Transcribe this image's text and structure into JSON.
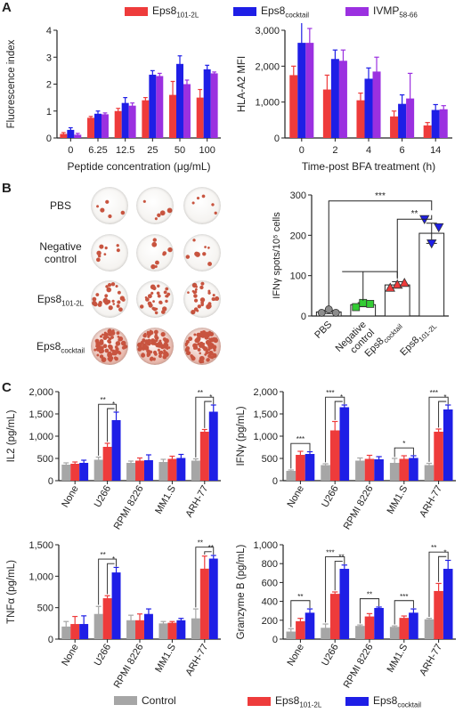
{
  "panels": {
    "a": "A",
    "b": "B",
    "c": "C"
  },
  "colors": {
    "eps8_101": "#ee3b3b",
    "eps8_cocktail": "#1e1ee6",
    "ivmp": "#9b30e0",
    "control": "#a6a6a6",
    "pbs_marker": "#8c8c8c",
    "neg_marker": "#33cc33",
    "cocktail_marker": "#ee3b3b",
    "eps101_marker": "#1e1ee6",
    "well_bg": "#f4f2ef",
    "well_spot": "#c8543f"
  },
  "legend_a": [
    {
      "base": "Eps8",
      "sub": "101-2L",
      "color_key": "eps8_101"
    },
    {
      "base": "Eps8",
      "sub": "cocktail",
      "color_key": "eps8_cocktail"
    },
    {
      "base": "IVMP",
      "sub": "58-66",
      "color_key": "ivmp"
    }
  ],
  "legend_c": [
    {
      "base": "Control",
      "sub": "",
      "color_key": "control"
    },
    {
      "base": "Eps8",
      "sub": "101-2L",
      "color_key": "eps8_101"
    },
    {
      "base": "Eps8",
      "sub": "cocktail",
      "color_key": "eps8_cocktail"
    }
  ],
  "wells": {
    "rows": [
      {
        "label_lines": [
          "PBS"
        ],
        "density": 0.04
      },
      {
        "label_lines": [
          "Negative",
          "control"
        ],
        "density": 0.08
      },
      {
        "label_lines": [
          "Eps8_101-2L"
        ],
        "density": 0.35
      },
      {
        "label_lines": [
          "Eps8_cocktail"
        ],
        "density": 1.0
      }
    ]
  },
  "chart_data": [
    {
      "id": "A1",
      "type": "bar",
      "xlabel": "Peptide concentration (μg/mL)",
      "ylabel": "Fluorescence index",
      "categories": [
        "0",
        "6.25",
        "12.5",
        "25",
        "50",
        "100"
      ],
      "ylim": [
        0,
        4
      ],
      "yticks": [
        0,
        1,
        2,
        3,
        4
      ],
      "series": [
        {
          "color_key": "eps8_101",
          "values": [
            0.15,
            0.75,
            1.0,
            1.4,
            1.6,
            1.5
          ],
          "errors": [
            0.05,
            0.05,
            0.1,
            0.1,
            0.5,
            0.3
          ]
        },
        {
          "color_key": "eps8_cocktail",
          "values": [
            0.3,
            0.9,
            1.3,
            2.35,
            2.75,
            2.55
          ],
          "errors": [
            0.08,
            0.1,
            0.2,
            0.15,
            0.3,
            0.15
          ]
        },
        {
          "color_key": "ivmp",
          "values": [
            0.12,
            0.88,
            1.2,
            2.3,
            2.0,
            2.4
          ],
          "errors": [
            0.05,
            0.05,
            0.1,
            0.1,
            0.15,
            0.05
          ]
        }
      ]
    },
    {
      "id": "A2",
      "type": "bar",
      "xlabel": "Time-post BFA treatment (h)",
      "ylabel": "HLA-A2 MFI",
      "categories": [
        "0",
        "2",
        "4",
        "6",
        "14"
      ],
      "ylim": [
        0,
        3000
      ],
      "yticks": [
        0,
        1000,
        2000,
        3000
      ],
      "ytick_labels": [
        "0",
        "1,000",
        "2,000",
        "3,000"
      ],
      "series": [
        {
          "color_key": "eps8_101",
          "values": [
            1750,
            1350,
            1050,
            600,
            350
          ],
          "errors": [
            250,
            400,
            200,
            150,
            80
          ]
        },
        {
          "color_key": "eps8_cocktail",
          "values": [
            2650,
            2200,
            1650,
            950,
            780
          ],
          "errors": [
            700,
            250,
            300,
            250,
            150
          ]
        },
        {
          "color_key": "ivmp",
          "values": [
            2650,
            2150,
            1850,
            1100,
            800
          ],
          "errors": [
            400,
            300,
            400,
            700,
            100
          ]
        }
      ]
    },
    {
      "id": "B",
      "type": "scatter",
      "ylabel": "IFNγ spots/10⁵ cells",
      "categories": [
        "PBS",
        "Negative control",
        "Eps8_cocktail",
        "Eps8_101-2L"
      ],
      "ylim": [
        0,
        300
      ],
      "yticks": [
        0,
        100,
        200,
        300
      ],
      "means": [
        10,
        28,
        77,
        205
      ],
      "errors": [
        4,
        5,
        8,
        25
      ],
      "points": [
        [
          8,
          12,
          8
        ],
        [
          22,
          28,
          30
        ],
        [
          70,
          78,
          82
        ],
        [
          240,
          180,
          220
        ]
      ],
      "markers": [
        "circle",
        "square",
        "triangle-up",
        "triangle-down"
      ],
      "marker_color_keys": [
        "pbs_marker",
        "neg_marker",
        "cocktail_marker",
        "eps101_marker"
      ],
      "significance": [
        "***",
        "**"
      ]
    },
    {
      "id": "C1",
      "type": "bar",
      "ylabel": "IL2 (pg/mL)",
      "categories": [
        "None",
        "U266",
        "RPMI 8226",
        "MM1.S",
        "ARH-77"
      ],
      "ylim": [
        0,
        2000
      ],
      "yticks": [
        0,
        500,
        1000,
        1500,
        2000
      ],
      "ytick_labels": [
        "0",
        "500",
        "1,000",
        "1,500",
        "2,000"
      ],
      "series": [
        {
          "name": "Control",
          "color_key": "control",
          "values": [
            360,
            470,
            400,
            420,
            450
          ],
          "errors": [
            40,
            60,
            40,
            60,
            40
          ]
        },
        {
          "name": "Eps8_101-2L",
          "color_key": "eps8_101",
          "values": [
            380,
            760,
            450,
            490,
            1100
          ],
          "errors": [
            40,
            80,
            60,
            60,
            50
          ]
        },
        {
          "name": "Eps8_cocktail",
          "color_key": "eps8_cocktail",
          "values": [
            400,
            1360,
            460,
            510,
            1550
          ],
          "errors": [
            60,
            180,
            120,
            80,
            150
          ]
        }
      ],
      "significance": [
        {
          "cat": 1,
          "stars": [
            "**",
            "*"
          ]
        },
        {
          "cat": 4,
          "stars": [
            "**",
            "*"
          ]
        }
      ]
    },
    {
      "id": "C2",
      "type": "bar",
      "ylabel": "IFNγ (pg/mL)",
      "categories": [
        "None",
        "U266",
        "RPMI 8226",
        "MM1.S",
        "ARH-77"
      ],
      "ylim": [
        0,
        2000
      ],
      "yticks": [
        0,
        500,
        1000,
        1500,
        2000
      ],
      "ytick_labels": [
        "0",
        "500",
        "1,000",
        "1,500",
        "2,000"
      ],
      "series": [
        {
          "name": "Control",
          "color_key": "control",
          "values": [
            220,
            350,
            450,
            400,
            350
          ],
          "errors": [
            20,
            30,
            60,
            100,
            40
          ]
        },
        {
          "name": "Eps8_101-2L",
          "color_key": "eps8_101",
          "values": [
            580,
            1130,
            490,
            490,
            1100
          ],
          "errors": [
            80,
            200,
            80,
            70,
            60
          ]
        },
        {
          "name": "Eps8_cocktail",
          "color_key": "eps8_cocktail",
          "values": [
            600,
            1650,
            480,
            510,
            1600
          ],
          "errors": [
            50,
            50,
            60,
            50,
            100
          ]
        }
      ],
      "significance": [
        {
          "cat": 0,
          "stars": [
            "***"
          ]
        },
        {
          "cat": 1,
          "stars": [
            "***",
            "*"
          ]
        },
        {
          "cat": 3,
          "stars": [
            "*"
          ]
        },
        {
          "cat": 4,
          "stars": [
            "***",
            "*"
          ]
        }
      ]
    },
    {
      "id": "C3",
      "type": "bar",
      "ylabel": "TNFα (pg/mL)",
      "categories": [
        "None",
        "U266",
        "RPMI 8226",
        "MM1.S",
        "ARH-77"
      ],
      "ylim": [
        0,
        1500
      ],
      "yticks": [
        0,
        500,
        1000,
        1500
      ],
      "ytick_labels": [
        "0",
        "500",
        "1,000",
        "1,500"
      ],
      "series": [
        {
          "name": "Control",
          "color_key": "control",
          "values": [
            200,
            400,
            300,
            250,
            330
          ],
          "errors": [
            80,
            120,
            80,
            30,
            150
          ]
        },
        {
          "name": "Eps8_101-2L",
          "color_key": "eps8_101",
          "values": [
            240,
            650,
            300,
            260,
            1120
          ],
          "errors": [
            120,
            40,
            100,
            20,
            200
          ]
        },
        {
          "name": "Eps8_cocktail",
          "color_key": "eps8_cocktail",
          "values": [
            240,
            1060,
            400,
            300,
            1280
          ],
          "errors": [
            130,
            80,
            80,
            30,
            50
          ]
        }
      ],
      "significance": [
        {
          "cat": 1,
          "stars": [
            "**",
            "*"
          ]
        },
        {
          "cat": 4,
          "stars": [
            "**",
            "**"
          ]
        }
      ]
    },
    {
      "id": "C4",
      "type": "bar",
      "ylabel": "Granzyme B (pg/mL)",
      "categories": [
        "None",
        "U266",
        "RPMI 8226",
        "MM1.S",
        "ARH-77"
      ],
      "ylim": [
        0,
        1000
      ],
      "yticks": [
        0,
        200,
        400,
        600,
        800,
        1000
      ],
      "ytick_labels": [
        "0",
        "200",
        "400",
        "600",
        "800",
        "1,000"
      ],
      "series": [
        {
          "name": "Control",
          "color_key": "control",
          "values": [
            80,
            120,
            140,
            130,
            210
          ],
          "errors": [
            30,
            40,
            10,
            10,
            10
          ]
        },
        {
          "name": "Eps8_101-2L",
          "color_key": "eps8_101",
          "values": [
            190,
            480,
            240,
            225,
            510
          ],
          "errors": [
            30,
            20,
            30,
            20,
            80
          ]
        },
        {
          "name": "Eps8_cocktail",
          "color_key": "eps8_cocktail",
          "values": [
            280,
            745,
            330,
            280,
            745
          ],
          "errors": [
            40,
            40,
            10,
            40,
            90
          ]
        }
      ],
      "significance": [
        {
          "cat": 0,
          "stars": [
            "**"
          ]
        },
        {
          "cat": 1,
          "stars": [
            "***",
            "**"
          ]
        },
        {
          "cat": 2,
          "stars": [
            "**"
          ]
        },
        {
          "cat": 3,
          "stars": [
            "***"
          ]
        },
        {
          "cat": 4,
          "stars": [
            "**",
            "*"
          ]
        }
      ]
    }
  ]
}
